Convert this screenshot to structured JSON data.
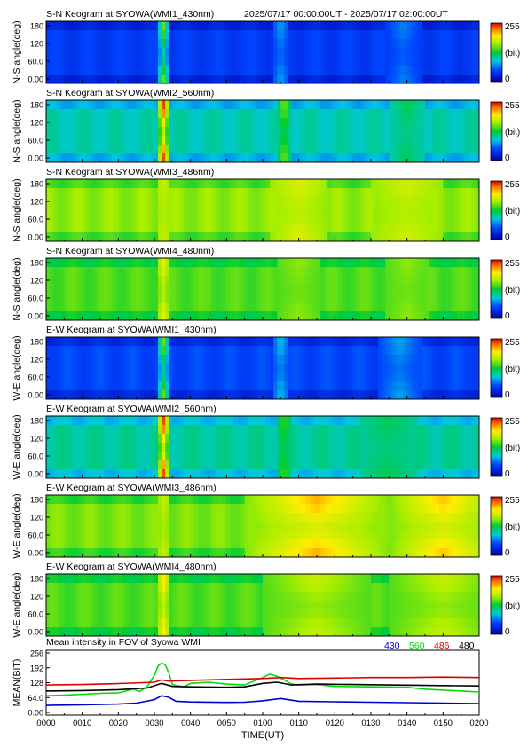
{
  "header": {
    "time_range": "2025/07/17 00:00:00UT - 2025/07/17 02:00:00UT"
  },
  "colorbar": {
    "max_label": "255",
    "unit_label": "(bit)",
    "min_label": "0"
  },
  "chart_data": [
    {
      "type": "heatmap",
      "title": "S-N Keogram at SYOWA(WMI1_430nm)",
      "ylabel": "N-S angle(deg)",
      "yticks": [
        "180",
        "120",
        "60.0",
        "0.00"
      ],
      "ylim": [
        0,
        180
      ],
      "xlim_minutes": [
        0,
        120
      ],
      "zlim": [
        0,
        255
      ],
      "background_level": 45,
      "bands": [
        {
          "t": 32.5,
          "width": 2.0,
          "level": 150
        },
        {
          "t": 65,
          "width": 2.5,
          "level": 80
        },
        {
          "t": 99,
          "width": 5,
          "level": 70
        }
      ]
    },
    {
      "type": "heatmap",
      "title": "S-N Keogram at SYOWA(WMI2_560nm)",
      "ylabel": "N-S angle(deg)",
      "yticks": [
        "180",
        "120",
        "60.0",
        "0.00"
      ],
      "ylim": [
        0,
        180
      ],
      "xlim_minutes": [
        0,
        120
      ],
      "zlim": [
        0,
        255
      ],
      "background_level": 100,
      "bands": [
        {
          "t": 32.5,
          "width": 2.0,
          "level": 240
        },
        {
          "t": 66,
          "width": 2.0,
          "level": 160
        },
        {
          "t": 100,
          "width": 5,
          "level": 120
        }
      ]
    },
    {
      "type": "heatmap",
      "title": "S-N Keogram at SYOWA(WMI3_486nm)",
      "ylabel": "N-S angle(deg)",
      "yticks": [
        "180",
        "120",
        "60.0",
        "0.00"
      ],
      "ylim": [
        0,
        180
      ],
      "xlim_minutes": [
        0,
        120
      ],
      "zlim": [
        0,
        255
      ],
      "background_level": 160,
      "bands": [
        {
          "t": 32.5,
          "width": 2.0,
          "level": 175
        },
        {
          "t": 70,
          "width": 8,
          "level": 185
        },
        {
          "t": 100,
          "width": 10,
          "level": 180
        }
      ]
    },
    {
      "type": "heatmap",
      "title": "S-N Keogram at SYOWA(WMI4_480nm)",
      "ylabel": "N-S angle(deg)",
      "yticks": [
        "180",
        "120",
        "60.0",
        "0.00"
      ],
      "ylim": [
        0,
        180
      ],
      "xlim_minutes": [
        0,
        120
      ],
      "zlim": [
        0,
        255
      ],
      "background_level": 145,
      "bands": [
        {
          "t": 32.5,
          "width": 2.0,
          "level": 190
        },
        {
          "t": 70,
          "width": 6,
          "level": 160
        },
        {
          "t": 100,
          "width": 6,
          "level": 160
        }
      ]
    },
    {
      "type": "heatmap",
      "title": "E-W Keogram at SYOWA(WMI1_430nm)",
      "ylabel": "W-E angle(deg)",
      "yticks": [
        "180",
        "120",
        "60.0",
        "0.00"
      ],
      "ylim": [
        0,
        180
      ],
      "xlim_minutes": [
        0,
        120
      ],
      "zlim": [
        0,
        255
      ],
      "background_level": 50,
      "bands": [
        {
          "t": 32.5,
          "width": 2.0,
          "level": 150
        },
        {
          "t": 65,
          "width": 2.5,
          "level": 90
        },
        {
          "t": 98,
          "width": 6,
          "level": 80
        }
      ]
    },
    {
      "type": "heatmap",
      "title": "E-W Keogram at SYOWA(WMI2_560nm)",
      "ylabel": "W-E angle(deg)",
      "yticks": [
        "180",
        "120",
        "60.0",
        "0.00"
      ],
      "ylim": [
        0,
        180
      ],
      "xlim_minutes": [
        0,
        120
      ],
      "zlim": [
        0,
        255
      ],
      "background_level": 105,
      "bands": [
        {
          "t": 32.5,
          "width": 2.0,
          "level": 240
        },
        {
          "t": 66,
          "width": 2.5,
          "level": 140
        },
        {
          "t": 95,
          "width": 8,
          "level": 120
        }
      ]
    },
    {
      "type": "heatmap",
      "title": "E-W Keogram at SYOWA(WMI3_486nm)",
      "ylabel": "W-E angle(deg)",
      "yticks": [
        "180",
        "120",
        "60.0",
        "0.00"
      ],
      "ylim": [
        0,
        180
      ],
      "xlim_minutes": [
        0,
        120
      ],
      "zlim": [
        0,
        255
      ],
      "background_level": 155,
      "bands": [
        {
          "t": 32.5,
          "width": 2.0,
          "level": 175
        },
        {
          "t": 75,
          "width": 20,
          "level": 215
        },
        {
          "t": 110,
          "width": 15,
          "level": 210
        }
      ]
    },
    {
      "type": "heatmap",
      "title": "E-W Keogram at SYOWA(WMI4_480nm)",
      "ylabel": "W-E angle(deg)",
      "yticks": [
        "180",
        "120",
        "60.0",
        "0.00"
      ],
      "ylim": [
        0,
        180
      ],
      "xlim_minutes": [
        0,
        120
      ],
      "zlim": [
        0,
        255
      ],
      "background_level": 145,
      "bands": [
        {
          "t": 32.5,
          "width": 2.0,
          "level": 200
        },
        {
          "t": 75,
          "width": 15,
          "level": 175
        },
        {
          "t": 110,
          "width": 15,
          "level": 175
        }
      ]
    },
    {
      "type": "line",
      "title": "Mean intensity in FOV of Syowa WMI",
      "xlabel": "TIME(UT)",
      "ylabel": "MEAN(BIT)",
      "xticks": [
        "0000",
        "0010",
        "0020",
        "0030",
        "0040",
        "0050",
        "0100",
        "0110",
        "0120",
        "0130",
        "0140",
        "0150",
        "0200"
      ],
      "yticks": [
        "256",
        "192",
        "128",
        "64.0",
        "0.00"
      ],
      "ylim": [
        0,
        256
      ],
      "xlim_minutes": [
        0,
        120
      ],
      "series": [
        {
          "name": "430",
          "color": "#0000cc",
          "x": [
            0,
            10,
            20,
            25,
            30,
            32,
            34,
            36,
            40,
            50,
            55,
            60,
            65,
            70,
            80,
            90,
            100,
            110,
            120
          ],
          "y": [
            30,
            33,
            36,
            40,
            55,
            72,
            65,
            48,
            45,
            43,
            44,
            50,
            60,
            48,
            46,
            44,
            42,
            40,
            38
          ]
        },
        {
          "name": "560",
          "color": "#00dd00",
          "x": [
            0,
            5,
            10,
            15,
            20,
            24,
            26,
            28,
            30,
            31,
            32,
            33,
            34,
            35,
            38,
            40,
            45,
            50,
            55,
            60,
            62,
            64,
            66,
            68,
            70,
            75,
            80,
            90,
            100,
            105,
            110,
            115,
            120
          ],
          "y": [
            72,
            74,
            78,
            82,
            84,
            100,
            90,
            112,
            160,
            200,
            212,
            205,
            170,
            120,
            110,
            125,
            130,
            122,
            118,
            150,
            165,
            155,
            140,
            122,
            118,
            120,
            112,
            110,
            108,
            100,
            96,
            92,
            88
          ]
        },
        {
          "name": "486",
          "color": "#dd0000",
          "x": [
            0,
            10,
            20,
            30,
            32,
            34,
            40,
            50,
            60,
            65,
            70,
            80,
            90,
            100,
            110,
            120
          ],
          "y": [
            118,
            120,
            124,
            130,
            140,
            135,
            138,
            142,
            146,
            150,
            146,
            148,
            150,
            150,
            152,
            150
          ]
        },
        {
          "name": "480",
          "color": "#000000",
          "x": [
            0,
            10,
            20,
            28,
            32,
            35,
            40,
            50,
            55,
            60,
            64,
            68,
            75,
            85,
            95,
            105,
            120
          ],
          "y": [
            92,
            94,
            98,
            105,
            125,
            112,
            110,
            108,
            110,
            125,
            130,
            118,
            122,
            120,
            118,
            116,
            114
          ]
        }
      ]
    }
  ]
}
